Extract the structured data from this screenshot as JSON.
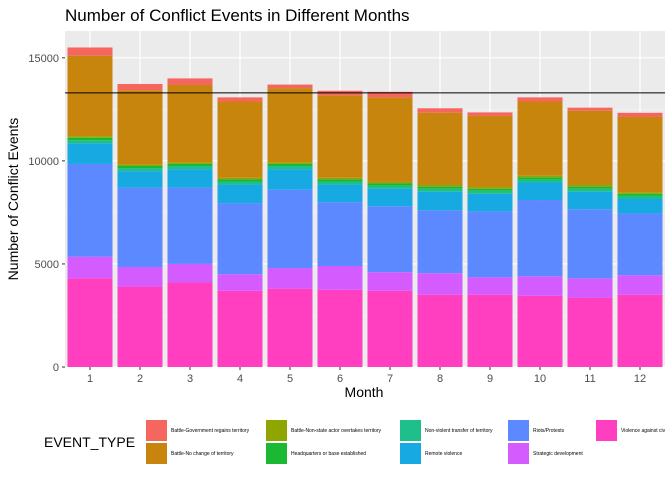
{
  "chart_data": {
    "type": "bar",
    "stacked": true,
    "title": "Number of Conflict Events in Different Months",
    "xlabel": "Month",
    "ylabel": "Number of Conflict Events",
    "ylim": [
      0,
      16300
    ],
    "yticks": [
      0,
      5000,
      10000,
      15000
    ],
    "yticks_labels": [
      "0",
      "5000",
      "10000",
      "15000"
    ],
    "categories": [
      "1",
      "2",
      "3",
      "4",
      "5",
      "6",
      "7",
      "8",
      "9",
      "10",
      "11",
      "12"
    ],
    "reference_line": 13300,
    "legend_title": "EVENT_TYPE",
    "legend_position": "bottom",
    "series": [
      {
        "name": "Violence against civ",
        "color": "#FF3FBF",
        "values": [
          4300,
          3900,
          4100,
          3700,
          3800,
          3750,
          3700,
          3500,
          3500,
          3450,
          3350,
          3500
        ]
      },
      {
        "name": "Strategic development",
        "color": "#D45CFF",
        "values": [
          1050,
          950,
          900,
          800,
          1000,
          1150,
          900,
          1050,
          850,
          950,
          950,
          950
        ]
      },
      {
        "name": "Riots/Protests",
        "color": "#5C89FF",
        "values": [
          4500,
          3850,
          3700,
          3450,
          3800,
          3100,
          3200,
          3050,
          3200,
          3700,
          3350,
          3000
        ]
      },
      {
        "name": "Remote violence",
        "color": "#17A9E2",
        "values": [
          1000,
          800,
          900,
          900,
          1000,
          850,
          850,
          900,
          850,
          850,
          850,
          700
        ]
      },
      {
        "name": "Non-violent transfer of territory",
        "color": "#1FBF8C",
        "values": [
          150,
          150,
          150,
          150,
          150,
          150,
          150,
          150,
          150,
          150,
          150,
          150
        ]
      },
      {
        "name": "Headquarters or base established",
        "color": "#1BB834",
        "values": [
          120,
          100,
          100,
          100,
          100,
          100,
          100,
          100,
          100,
          100,
          100,
          100
        ]
      },
      {
        "name": "Battle-Non-state actor overtakes territory",
        "color": "#8FA600",
        "values": [
          80,
          80,
          80,
          80,
          80,
          80,
          80,
          80,
          80,
          80,
          80,
          80
        ]
      },
      {
        "name": "Battle-No change of territory",
        "color": "#C8850E",
        "values": [
          3900,
          3600,
          3750,
          3700,
          3600,
          4000,
          4100,
          3500,
          3450,
          3600,
          3600,
          3650
        ]
      },
      {
        "name": "Battle-Government regains territory",
        "color": "#F5665F",
        "values": [
          400,
          300,
          320,
          200,
          170,
          220,
          270,
          220,
          170,
          200,
          150,
          200
        ]
      }
    ]
  },
  "legend": {
    "title": "EVENT_TYPE",
    "entries": [
      {
        "name": "Battle-Government regains territory",
        "color": "#F5665F"
      },
      {
        "name": "Battle-No change of territory",
        "color": "#C8850E"
      },
      {
        "name": "Battle-Non-state actor overtakes territory",
        "color": "#8FA600"
      },
      {
        "name": "Headquarters or base established",
        "color": "#1BB834"
      },
      {
        "name": "Non-violent transfer of territory",
        "color": "#1FBF8C"
      },
      {
        "name": "Remote violence",
        "color": "#17A9E2"
      },
      {
        "name": "Riots/Protests",
        "color": "#5C89FF"
      },
      {
        "name": "Strategic development",
        "color": "#D45CFF"
      },
      {
        "name": "Violence against civ",
        "color": "#FF3FBF"
      }
    ]
  }
}
